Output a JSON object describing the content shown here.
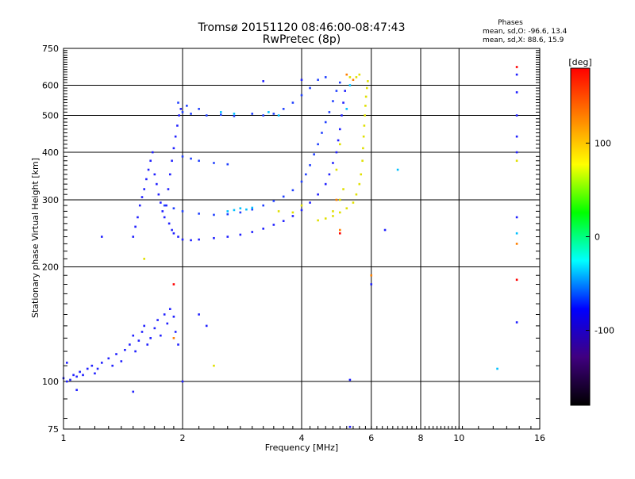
{
  "chart_data": {
    "type": "scatter",
    "title": "Tromsø 20151120 08:46:00-08:47:43",
    "subtitle": "RwPretec (8p)",
    "xlabel": "Frequency [MHz]",
    "ylabel": "Stationary phase Virtual Height [km]",
    "x_scale": "log",
    "y_scale": "log",
    "xlim": [
      1,
      16
    ],
    "ylim": [
      75,
      750
    ],
    "x_ticks": [
      1,
      2,
      4,
      6,
      8,
      10,
      16
    ],
    "y_ticks": [
      75,
      100,
      200,
      300,
      400,
      500,
      600,
      750
    ],
    "grid": true,
    "stats_box": {
      "heading": "Phases",
      "line_o": "mean, sd,O: -96.6, 13.4",
      "line_x": "mean, sd,X:  88.6, 15.9"
    },
    "colorbar": {
      "label": "[deg]",
      "range": [
        -180,
        180
      ],
      "ticks": [
        100,
        0,
        -100
      ],
      "colors": [
        "#ff0000",
        "#ff8000",
        "#ffff00",
        "#00ff00",
        "#00ffff",
        "#0000ff",
        "#400080",
        "#000000"
      ]
    },
    "series": [
      {
        "color": "#2020ff",
        "points": [
          [
            1.0,
            102
          ],
          [
            1.02,
            100
          ],
          [
            1.04,
            101
          ],
          [
            1.06,
            104
          ],
          [
            1.08,
            103
          ],
          [
            1.1,
            106
          ],
          [
            1.12,
            104
          ],
          [
            1.15,
            108
          ],
          [
            1.18,
            110
          ],
          [
            1.2,
            105
          ],
          [
            1.22,
            108
          ],
          [
            1.25,
            112
          ],
          [
            1.3,
            115
          ],
          [
            1.33,
            110
          ],
          [
            1.36,
            118
          ],
          [
            1.4,
            113
          ],
          [
            1.43,
            121
          ],
          [
            1.47,
            125
          ],
          [
            1.5,
            132
          ],
          [
            1.52,
            120
          ],
          [
            1.55,
            128
          ],
          [
            1.58,
            135
          ],
          [
            1.6,
            140
          ],
          [
            1.63,
            125
          ],
          [
            1.66,
            130
          ],
          [
            1.7,
            138
          ],
          [
            1.73,
            145
          ],
          [
            1.76,
            132
          ],
          [
            1.8,
            150
          ],
          [
            1.83,
            142
          ],
          [
            1.86,
            155
          ],
          [
            1.9,
            148
          ],
          [
            1.92,
            135
          ],
          [
            1.95,
            125
          ],
          [
            1.02,
            112
          ],
          [
            1.08,
            95
          ],
          [
            1.5,
            94
          ]
        ]
      },
      {
        "color": "#2020ff",
        "points": [
          [
            1.5,
            240
          ],
          [
            1.52,
            255
          ],
          [
            1.54,
            270
          ],
          [
            1.56,
            290
          ],
          [
            1.58,
            305
          ],
          [
            1.6,
            320
          ],
          [
            1.62,
            340
          ],
          [
            1.64,
            360
          ],
          [
            1.66,
            380
          ],
          [
            1.68,
            400
          ],
          [
            1.7,
            350
          ],
          [
            1.72,
            330
          ],
          [
            1.74,
            310
          ],
          [
            1.76,
            295
          ],
          [
            1.78,
            280
          ],
          [
            1.8,
            270
          ],
          [
            1.82,
            290
          ],
          [
            1.84,
            320
          ],
          [
            1.86,
            350
          ],
          [
            1.88,
            380
          ],
          [
            1.9,
            410
          ],
          [
            1.92,
            440
          ],
          [
            1.94,
            470
          ],
          [
            1.96,
            500
          ],
          [
            1.98,
            520
          ],
          [
            1.85,
            260
          ],
          [
            1.88,
            250
          ],
          [
            1.9,
            245
          ],
          [
            1.95,
            240
          ],
          [
            2.0,
            236
          ],
          [
            2.1,
            235
          ],
          [
            2.2,
            236
          ],
          [
            2.4,
            238
          ],
          [
            2.6,
            240
          ],
          [
            2.8,
            243
          ],
          [
            3.0,
            247
          ],
          [
            3.2,
            252
          ],
          [
            3.4,
            258
          ],
          [
            3.6,
            264
          ],
          [
            3.8,
            272
          ],
          [
            4.0,
            282
          ],
          [
            4.2,
            295
          ],
          [
            4.4,
            310
          ],
          [
            4.6,
            330
          ],
          [
            4.7,
            350
          ],
          [
            4.8,
            375
          ],
          [
            4.9,
            400
          ],
          [
            4.95,
            430
          ],
          [
            5.0,
            460
          ],
          [
            5.05,
            500
          ],
          [
            5.1,
            540
          ],
          [
            5.15,
            580
          ]
        ]
      },
      {
        "color": "#2040ff",
        "points": [
          [
            1.8,
            290
          ],
          [
            1.9,
            285
          ],
          [
            2.0,
            280
          ],
          [
            2.2,
            276
          ],
          [
            2.4,
            274
          ],
          [
            2.6,
            275
          ],
          [
            2.8,
            278
          ],
          [
            3.0,
            283
          ],
          [
            3.2,
            290
          ],
          [
            3.4,
            298
          ],
          [
            3.6,
            306
          ],
          [
            3.8,
            318
          ],
          [
            4.0,
            335
          ],
          [
            4.1,
            350
          ],
          [
            4.2,
            370
          ],
          [
            4.3,
            395
          ],
          [
            4.4,
            420
          ],
          [
            4.5,
            450
          ],
          [
            4.6,
            480
          ],
          [
            4.7,
            510
          ],
          [
            4.8,
            545
          ],
          [
            4.9,
            580
          ],
          [
            5.0,
            610
          ],
          [
            3.0,
            505
          ],
          [
            3.2,
            500
          ],
          [
            3.4,
            505
          ],
          [
            3.6,
            520
          ],
          [
            3.8,
            540
          ],
          [
            4.0,
            565
          ],
          [
            4.2,
            590
          ],
          [
            4.4,
            620
          ],
          [
            4.6,
            630
          ],
          [
            2.0,
            390
          ],
          [
            2.1,
            385
          ],
          [
            2.2,
            380
          ],
          [
            2.4,
            375
          ],
          [
            2.6,
            372
          ],
          [
            2.0,
            510
          ],
          [
            2.1,
            505
          ],
          [
            2.3,
            500
          ],
          [
            2.5,
            502
          ],
          [
            2.7,
            498
          ],
          [
            1.95,
            540
          ],
          [
            2.05,
            530
          ],
          [
            2.2,
            520
          ]
        ]
      },
      {
        "color": "#00c0ff",
        "points": [
          [
            2.6,
            280
          ],
          [
            2.7,
            282
          ],
          [
            2.8,
            285
          ],
          [
            2.9,
            283
          ],
          [
            3.0,
            286
          ],
          [
            2.5,
            510
          ],
          [
            2.7,
            505
          ],
          [
            3.3,
            510
          ],
          [
            3.5,
            500
          ],
          [
            5.2,
            520
          ],
          [
            5.3,
            600
          ],
          [
            7.0,
            360
          ],
          [
            12.5,
            108
          ],
          [
            14.0,
            245
          ]
        ]
      },
      {
        "color": "#e0e000",
        "points": [
          [
            4.4,
            265
          ],
          [
            4.6,
            268
          ],
          [
            4.8,
            272
          ],
          [
            5.0,
            278
          ],
          [
            5.2,
            285
          ],
          [
            5.4,
            295
          ],
          [
            5.5,
            310
          ],
          [
            5.6,
            330
          ],
          [
            5.65,
            350
          ],
          [
            5.7,
            380
          ],
          [
            5.72,
            410
          ],
          [
            5.74,
            440
          ],
          [
            5.76,
            470
          ],
          [
            5.78,
            500
          ],
          [
            5.8,
            530
          ],
          [
            5.82,
            560
          ],
          [
            5.85,
            590
          ],
          [
            5.88,
            615
          ],
          [
            5.6,
            640
          ],
          [
            5.5,
            630
          ],
          [
            5.3,
            630
          ],
          [
            5.1,
            320
          ],
          [
            5.0,
            300
          ],
          [
            4.8,
            280
          ],
          [
            4.9,
            360
          ],
          [
            5.0,
            420
          ],
          [
            3.5,
            280
          ],
          [
            3.8,
            278
          ],
          [
            4.0,
            290
          ],
          [
            1.6,
            210
          ],
          [
            2.4,
            110
          ],
          [
            14.0,
            380
          ]
        ]
      },
      {
        "color": "#ff8000",
        "points": [
          [
            5.2,
            640
          ],
          [
            5.4,
            620
          ],
          [
            4.9,
            300
          ],
          [
            5.0,
            250
          ],
          [
            6.0,
            190
          ],
          [
            1.9,
            130
          ],
          [
            14.0,
            230
          ]
        ]
      },
      {
        "color": "#ff0000",
        "points": [
          [
            5.0,
            245
          ],
          [
            14.0,
            670
          ],
          [
            14.0,
            185
          ],
          [
            1.9,
            180
          ]
        ]
      },
      {
        "color": "#2020ff",
        "points": [
          [
            1.25,
            240
          ],
          [
            2.2,
            150
          ],
          [
            2.3,
            140
          ],
          [
            3.2,
            615
          ],
          [
            4.0,
            620
          ],
          [
            5.3,
            101
          ],
          [
            5.3,
            76
          ],
          [
            6.0,
            180
          ],
          [
            6.5,
            250
          ],
          [
            14.0,
            640
          ],
          [
            14.0,
            575
          ],
          [
            14.0,
            500
          ],
          [
            14.0,
            440
          ],
          [
            14.0,
            400
          ],
          [
            14.0,
            270
          ],
          [
            14.0,
            143
          ],
          [
            2.0,
            100
          ]
        ]
      }
    ]
  }
}
